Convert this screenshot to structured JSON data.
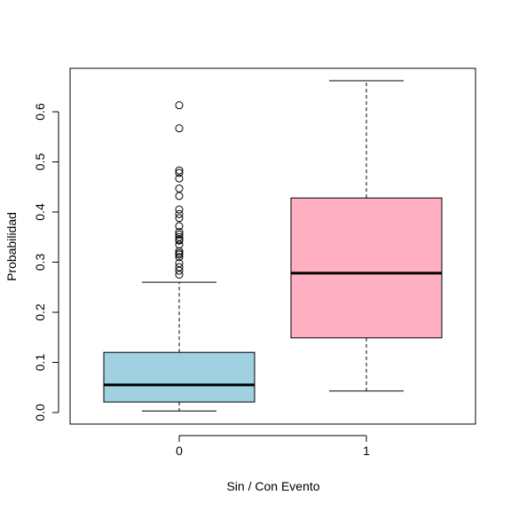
{
  "chart_data": {
    "type": "boxplot",
    "title": "",
    "xlabel": "Sin / Con Evento",
    "ylabel": "Probabilidad",
    "categories": [
      "0",
      "1"
    ],
    "ylim": [
      -0.02,
      0.69
    ],
    "yticks": [
      "0.0",
      "0.1",
      "0.2",
      "0.3",
      "0.4",
      "0.5",
      "0.6"
    ],
    "grid": false,
    "boxes": [
      {
        "category": "0",
        "color": "#9fd1e1",
        "whisker_low": 0.003,
        "q1": 0.021,
        "median": 0.055,
        "q3": 0.12,
        "whisker_high": 0.26,
        "outliers": [
          0.613,
          0.567,
          0.483,
          0.478,
          0.467,
          0.447,
          0.432,
          0.405,
          0.396,
          0.388,
          0.372,
          0.36,
          0.355,
          0.35,
          0.345,
          0.343,
          0.335,
          0.322,
          0.318,
          0.315,
          0.31,
          0.298,
          0.29,
          0.283,
          0.275
        ]
      },
      {
        "category": "1",
        "color": "#ffb0c3",
        "whisker_low": 0.043,
        "q1": 0.149,
        "median": 0.278,
        "q3": 0.428,
        "whisker_high": 0.662,
        "outliers": []
      }
    ]
  }
}
